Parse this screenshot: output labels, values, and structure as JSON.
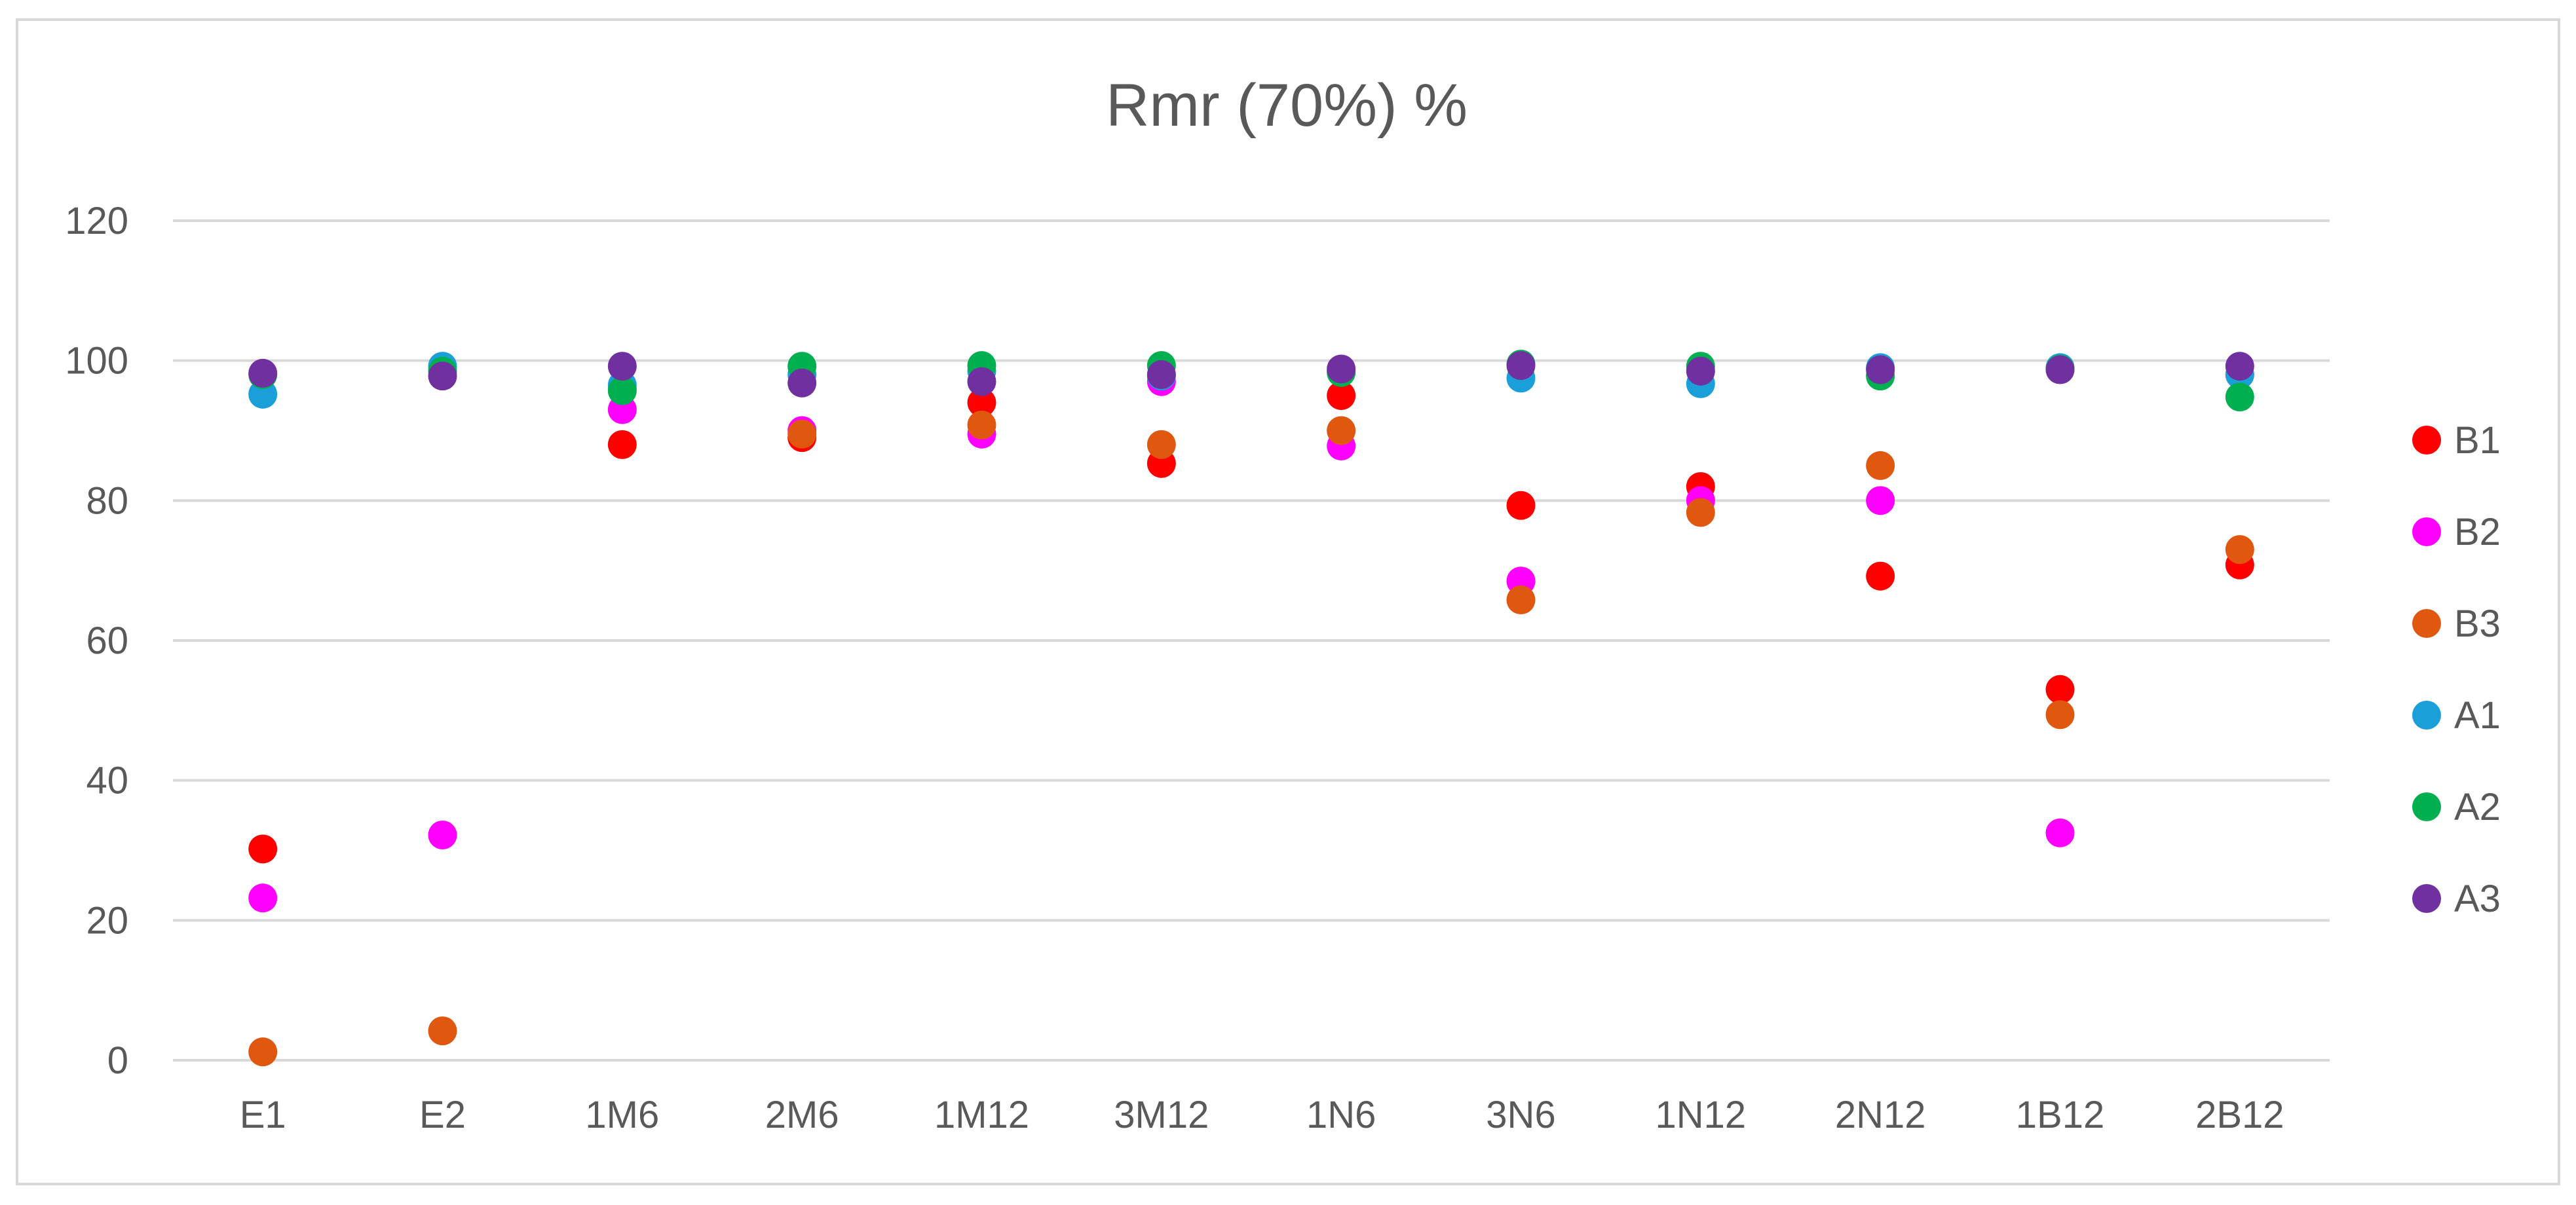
{
  "chart_data": {
    "type": "scatter",
    "title": "Rmr (70%)  %",
    "xlabel": "",
    "ylabel": "",
    "categories": [
      "E1",
      "E2",
      "1M6",
      "2M6",
      "1M12",
      "3M12",
      "1N6",
      "3N6",
      "1N12",
      "2N12",
      "1B12",
      "2B12"
    ],
    "ylim": [
      0,
      120
    ],
    "yticks": [
      0,
      20,
      40,
      60,
      80,
      100,
      120
    ],
    "grid": true,
    "legend_position": "right",
    "series": [
      {
        "name": "B1",
        "color": "#ff0000",
        "values": [
          30.2,
          null,
          88,
          89,
          94,
          85.3,
          95,
          79.3,
          82,
          69.2,
          53,
          70.8
        ]
      },
      {
        "name": "B2",
        "color": "#ff00ff",
        "values": [
          23.2,
          32.2,
          93,
          90,
          89.5,
          97,
          87.8,
          68.5,
          80,
          80,
          32.5,
          98
        ]
      },
      {
        "name": "B3",
        "color": "#e0580f",
        "values": [
          1.2,
          4.2,
          96,
          89.5,
          90.8,
          88,
          90,
          65.8,
          78.3,
          85,
          49.4,
          73
        ]
      },
      {
        "name": "A1",
        "color": "#1a9fd9",
        "values": [
          95.2,
          99.2,
          96.5,
          98,
          98.5,
          97.8,
          98.5,
          97.5,
          96.7,
          99,
          99,
          98
        ]
      },
      {
        "name": "A2",
        "color": "#00b050",
        "values": [
          98,
          98.5,
          95.7,
          99.2,
          99.3,
          99.3,
          98.3,
          99.5,
          99.2,
          97.8,
          98.8,
          94.8
        ]
      },
      {
        "name": "A3",
        "color": "#7030a0",
        "values": [
          98.2,
          97.8,
          99.2,
          96.8,
          97,
          98,
          98.8,
          99.3,
          98.5,
          98.7,
          98.7,
          99.2
        ]
      }
    ]
  }
}
